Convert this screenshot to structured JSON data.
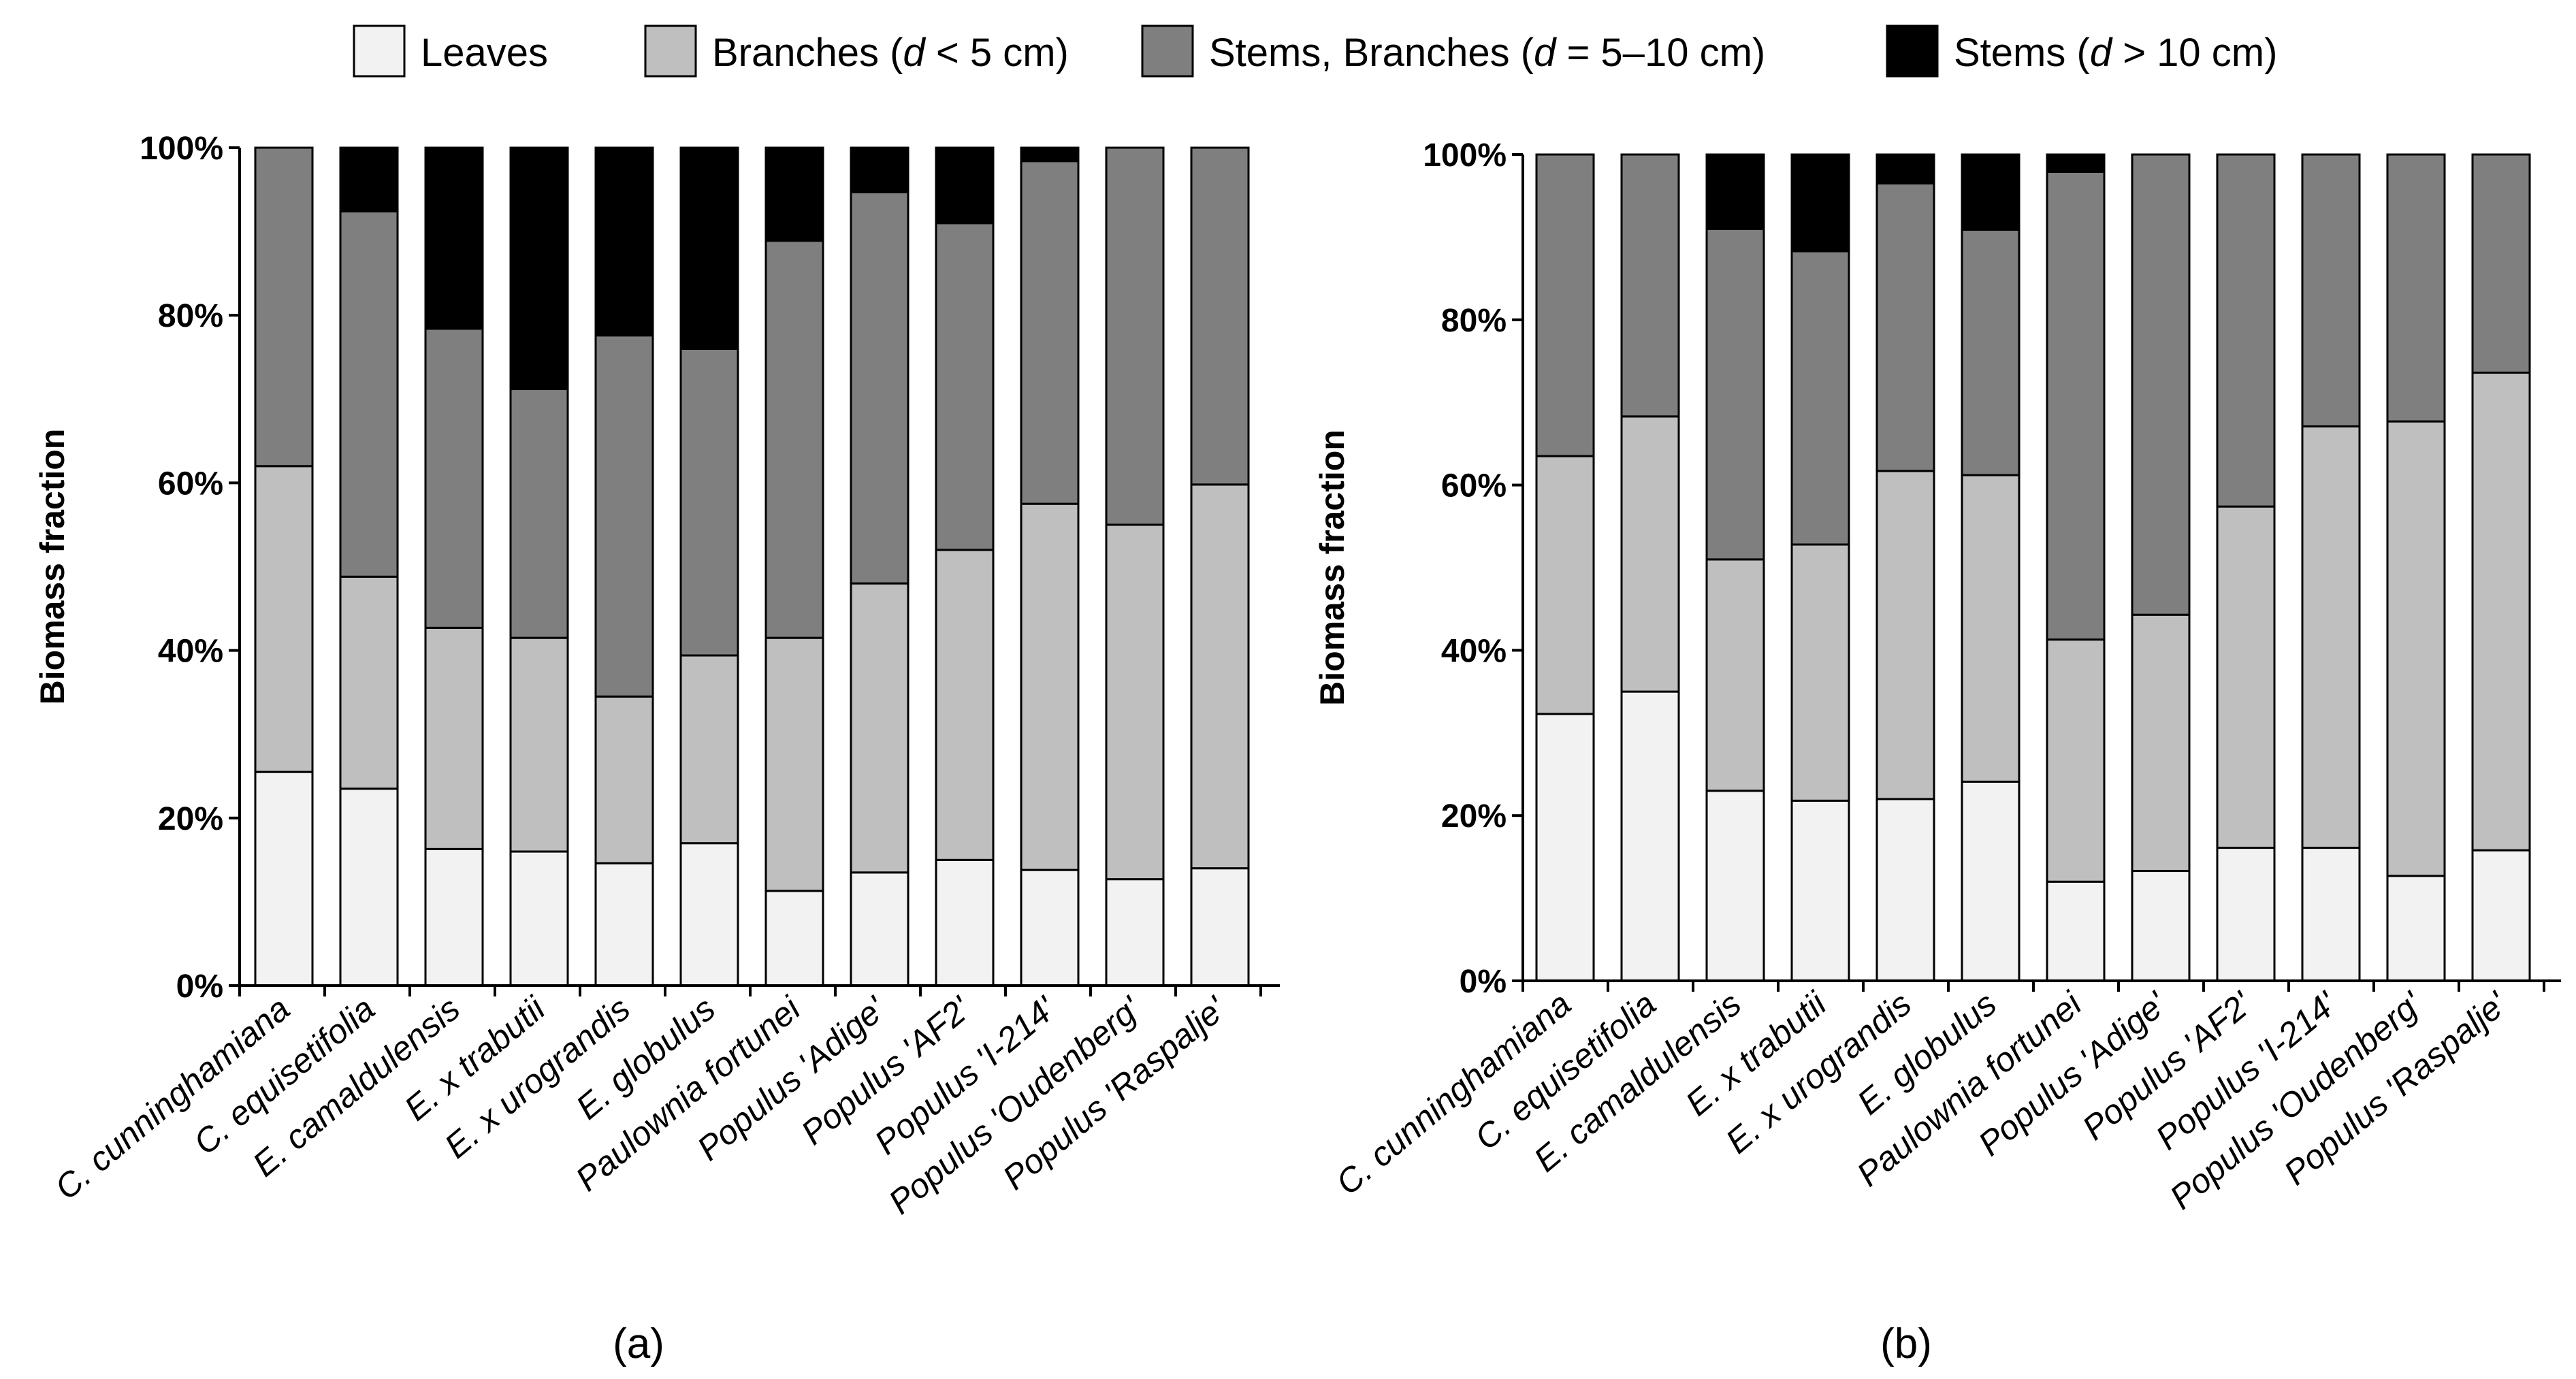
{
  "legend": [
    {
      "key": "leaves",
      "pre": "Leaves",
      "ital": "",
      "post": "",
      "color": "#f2f2f2"
    },
    {
      "key": "branches",
      "pre": "Branches (",
      "ital": "d",
      "post": " < 5 cm)",
      "color": "#bfbfbf"
    },
    {
      "key": "stems_branches",
      "pre": "Stems, Branches (",
      "ital": "d",
      "post": " = 5–10 cm)",
      "color": "#7f7f7f"
    },
    {
      "key": "stems",
      "pre": "Stems (",
      "ital": "d",
      "post": " > 10 cm)",
      "color": "#000000"
    }
  ],
  "chart_data": [
    {
      "type": "bar",
      "stacked": true,
      "panel_label": "(a)",
      "ylabel": "Biomass fraction",
      "ylim": [
        0,
        100
      ],
      "yticks": [
        "0%",
        "20%",
        "40%",
        "60%",
        "80%",
        "100%"
      ],
      "categories": [
        "C. cunninghamiana",
        "C. equisetifolia",
        "E. camaldulensis",
        "E. x trabutii",
        "E. x urograndis",
        "E. globulus",
        "Paulownia fortunei",
        "Populus 'Adige'",
        "Populus 'AF2'",
        "Populus 'I-214'",
        "Populus 'Oudenberg'",
        "Populus 'Raspalje'"
      ],
      "series": [
        {
          "name": "Leaves",
          "values": [
            25.5,
            23.5,
            16.3,
            16.0,
            14.6,
            17.0,
            11.3,
            13.5,
            15.0,
            13.8,
            12.7,
            14.0
          ]
        },
        {
          "name": "Branches (d < 5 cm)",
          "values": [
            36.5,
            25.3,
            26.4,
            25.5,
            19.9,
            22.4,
            30.2,
            34.5,
            37.0,
            43.7,
            42.3,
            45.8
          ]
        },
        {
          "name": "Stems, Branches (d = 5–10 cm)",
          "values": [
            38.0,
            43.6,
            35.7,
            29.7,
            43.1,
            36.6,
            47.4,
            46.7,
            39.0,
            40.9,
            45.0,
            40.2
          ]
        },
        {
          "name": "Stems (d > 10 cm)",
          "values": [
            0,
            7.6,
            21.6,
            28.8,
            22.4,
            24.0,
            11.1,
            5.3,
            9.0,
            1.6,
            0,
            0
          ]
        }
      ]
    },
    {
      "type": "bar",
      "stacked": true,
      "panel_label": "(b)",
      "ylabel": "Biomass fraction",
      "ylim": [
        0,
        100
      ],
      "yticks": [
        "0%",
        "20%",
        "40%",
        "60%",
        "80%",
        "100%"
      ],
      "categories": [
        "C. cunninghamiana",
        "C. equisetifolia",
        "E. camaldulensis",
        "E. x trabutii",
        "E. x urograndis",
        "E. globulus",
        "Paulownia fortunei",
        "Populus 'Adige'",
        "Populus 'AF2'",
        "Populus 'I-214'",
        "Populus 'Oudenberg'",
        "Populus 'Raspalje'"
      ],
      "series": [
        {
          "name": "Leaves",
          "values": [
            32.3,
            35.0,
            23.0,
            21.8,
            22.0,
            24.1,
            12.0,
            13.3,
            16.1,
            16.1,
            12.7,
            15.8
          ]
        },
        {
          "name": "Branches (d < 5 cm)",
          "values": [
            31.2,
            33.3,
            28.0,
            31.0,
            39.7,
            37.1,
            29.3,
            31.0,
            41.3,
            51.0,
            55.0,
            57.8
          ]
        },
        {
          "name": "Stems, Branches (d = 5–10 cm)",
          "values": [
            36.5,
            31.7,
            40.0,
            35.5,
            34.8,
            29.7,
            56.6,
            55.7,
            42.6,
            32.9,
            32.3,
            26.4
          ]
        },
        {
          "name": "Stems (d > 10 cm)",
          "values": [
            0,
            0,
            9.0,
            11.7,
            3.5,
            9.1,
            2.1,
            0,
            0,
            0,
            0,
            0
          ]
        }
      ]
    }
  ]
}
